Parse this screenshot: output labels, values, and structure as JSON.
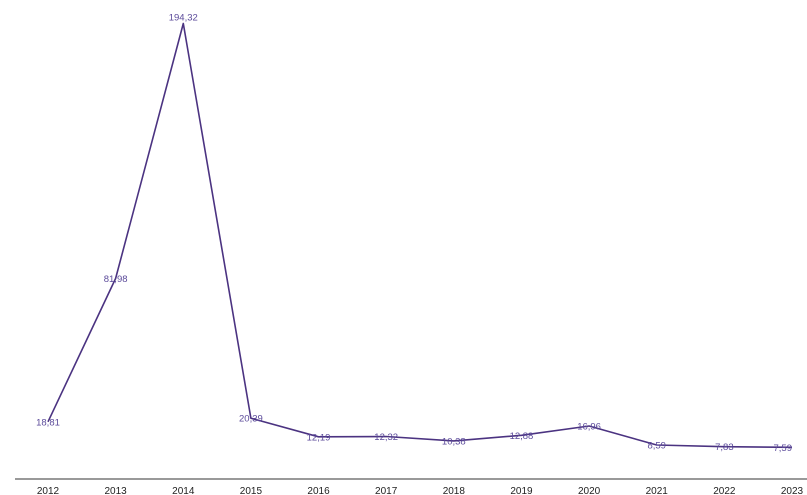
{
  "chart_data": {
    "type": "line",
    "title": "",
    "xlabel": "",
    "ylabel": "",
    "categories": [
      "2012",
      "2013",
      "2014",
      "2015",
      "2016",
      "2017",
      "2018",
      "2019",
      "2020",
      "2021",
      "2022",
      "2023"
    ],
    "series": [
      {
        "values": [
          18.81,
          81.98,
          194.32,
          20.39,
          12.19,
          12.32,
          10.38,
          12.88,
          16.96,
          8.59,
          7.83,
          7.59
        ],
        "labels": [
          "18,81",
          "81,98",
          "194,32",
          "20,39",
          "12,19",
          "12,32",
          "10,38",
          "12,88",
          "16,96",
          "8,59",
          "7,83",
          "7,59"
        ],
        "color": "#4b3381"
      }
    ],
    "ylim": [
      0,
      194.32
    ],
    "grid": false,
    "legend": "none",
    "colors": {
      "line": "#4b3381",
      "label": "#5b4a9a",
      "axis": "#333333"
    }
  }
}
